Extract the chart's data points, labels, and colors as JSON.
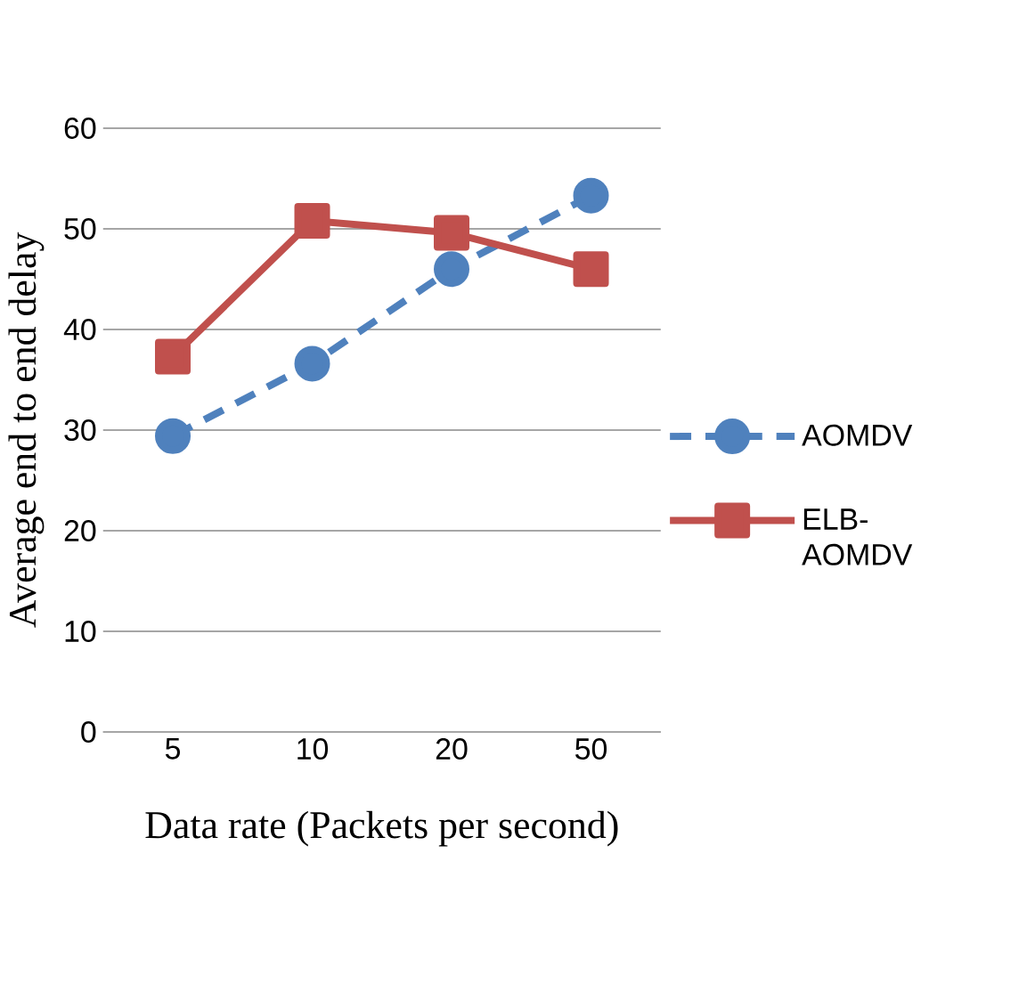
{
  "chart_data": {
    "type": "line",
    "xlabel": "Data rate (Packets per second)",
    "ylabel": "Average end to end delay",
    "categories": [
      "5",
      "10",
      "20",
      "50"
    ],
    "series": [
      {
        "name": "AOMDV",
        "color": "#4f81bd",
        "values": [
          29.4,
          36.6,
          46.0,
          53.3
        ],
        "marker": "circle",
        "line_style": "dashed"
      },
      {
        "name": "ELB-AOMDV",
        "color": "#c0504d",
        "values": [
          37.3,
          50.8,
          49.6,
          46.0
        ],
        "marker": "square",
        "line_style": "solid"
      }
    ],
    "ylim": [
      0,
      60
    ],
    "yticks": [
      0,
      10,
      20,
      30,
      40,
      50,
      60
    ],
    "grid": "y",
    "legend": "right"
  }
}
